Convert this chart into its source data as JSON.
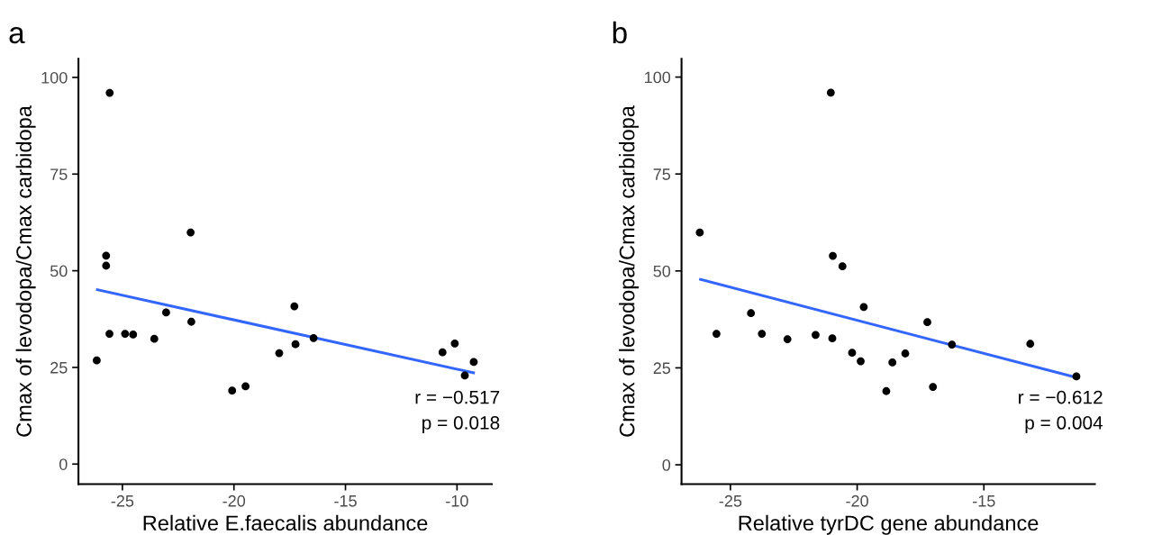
{
  "chart_data": [
    {
      "type": "scatter",
      "title": "a",
      "xlabel": "Relative E.faecalis abundance",
      "ylabel": "Cmax of levodopa/Cmax carbidopa",
      "xlim": [
        -26.97,
        -8.44
      ],
      "ylim": [
        -5.2,
        104.8
      ],
      "xticks": [
        -25,
        -20,
        -15,
        -10
      ],
      "yticks": [
        0,
        25,
        50,
        75,
        100
      ],
      "grid": false,
      "series": [
        {
          "marker": "circle",
          "color": "#000000",
          "x": [
            -26.15,
            -25.57,
            -25.73,
            -25.73,
            -25.58,
            -24.88,
            -24.52,
            -23.57,
            -23.04,
            -21.94,
            -21.91,
            -20.08,
            -19.48,
            -17.97,
            -17.29,
            -17.24,
            -16.43,
            -10.65,
            -10.1,
            -9.65,
            -9.25
          ],
          "values": [
            26.8,
            96.0,
            53.9,
            51.3,
            33.7,
            33.7,
            33.5,
            32.4,
            39.2,
            59.9,
            36.8,
            19.0,
            20.1,
            28.7,
            40.8,
            31.0,
            32.6,
            28.9,
            31.2,
            22.9,
            26.4
          ]
        },
        {
          "type": "line",
          "color": "#3366ff",
          "x": [
            -26.12,
            -9.26
          ],
          "values": [
            45.1,
            23.6
          ]
        }
      ],
      "annotations": [
        "r = −0.517",
        "p = 0.018"
      ]
    },
    {
      "type": "scatter",
      "title": "b",
      "xlabel": "Relative tyrDC gene abundance",
      "ylabel": "Cmax of levodopa/Cmax carbidopa",
      "xlim": [
        -26.93,
        -10.62
      ],
      "ylim": [
        -5.0,
        104.7
      ],
      "xticks": [
        -25,
        -20,
        -15
      ],
      "yticks": [
        0,
        25,
        50,
        75,
        100
      ],
      "grid": false,
      "series": [
        {
          "marker": "circle",
          "color": "#000000",
          "x": [
            -26.21,
            -25.55,
            -24.19,
            -23.76,
            -22.75,
            -21.64,
            -21.04,
            -20.96,
            -20.98,
            -20.58,
            -20.2,
            -19.86,
            -19.74,
            -18.85,
            -18.61,
            -18.1,
            -17.23,
            -17.01,
            -16.26,
            -13.17,
            -11.35
          ],
          "values": [
            59.9,
            33.8,
            39.1,
            33.8,
            32.4,
            33.5,
            96.0,
            53.9,
            32.6,
            51.2,
            28.9,
            26.7,
            40.7,
            19.0,
            26.4,
            28.7,
            36.8,
            20.1,
            31.0,
            31.2,
            22.8
          ]
        },
        {
          "type": "line",
          "color": "#3366ff",
          "x": [
            -26.18,
            -11.35
          ],
          "values": [
            47.8,
            22.5
          ]
        }
      ],
      "annotations": [
        "r = −0.612",
        "p = 0.004"
      ]
    }
  ]
}
